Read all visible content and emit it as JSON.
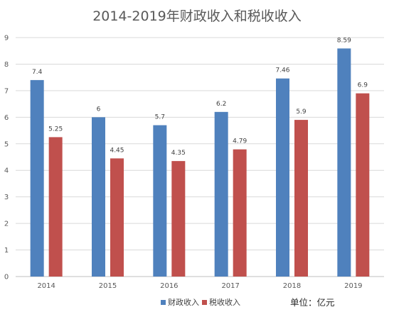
{
  "chart_data": {
    "type": "bar",
    "title": "2014-2019年财政收入和税收收入",
    "categories": [
      "2014",
      "2015",
      "2016",
      "2017",
      "2018",
      "2019"
    ],
    "series": [
      {
        "name": "财政收入",
        "color": "#4F81BD",
        "values": [
          7.4,
          6,
          5.7,
          6.2,
          7.46,
          8.59
        ]
      },
      {
        "name": "税收收入",
        "color": "#C0504D",
        "values": [
          5.25,
          4.45,
          4.35,
          4.79,
          5.9,
          6.9
        ]
      }
    ],
    "data_labels": [
      [
        "7.4",
        "6",
        "5.7",
        "6.2",
        "7.46",
        "8.59"
      ],
      [
        "5.25",
        "4.45",
        "4.35",
        "4.79",
        "5.9",
        "6.9"
      ]
    ],
    "ylim": [
      0,
      9
    ],
    "yticks": [
      "0",
      "1",
      "2",
      "3",
      "4",
      "5",
      "6",
      "7",
      "8",
      "9"
    ],
    "xlabel": "",
    "ylabel": "",
    "grid": true,
    "legend_position": "bottom",
    "unit_note": "单位：亿元"
  }
}
